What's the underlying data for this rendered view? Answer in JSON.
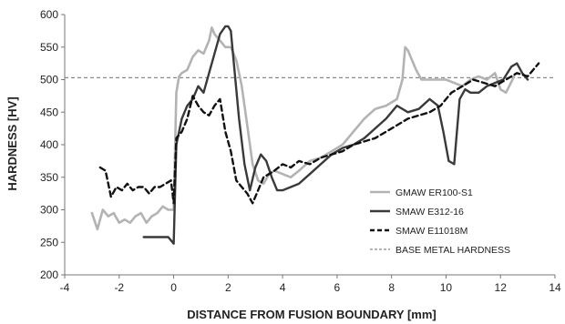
{
  "chart_data": {
    "type": "line",
    "title": "",
    "xlabel": "DISTANCE FROM FUSION BOUNDARY [mm]",
    "ylabel": "HARDNESS [HV]",
    "xlim": [
      -4,
      14
    ],
    "ylim": [
      200,
      600
    ],
    "xticks": [
      -4,
      -2,
      0,
      2,
      4,
      6,
      8,
      10,
      12,
      14
    ],
    "yticks": [
      200,
      250,
      300,
      350,
      400,
      450,
      500,
      550,
      600
    ],
    "grid": false,
    "legend_position": "bottom-right",
    "series": [
      {
        "name": "GMAW ER100-S1",
        "style": "solid",
        "color": "#b3b3b3",
        "x": [
          -3,
          -2.8,
          -2.6,
          -2.4,
          -2.2,
          -2.0,
          -1.8,
          -1.6,
          -1.4,
          -1.2,
          -1.0,
          -0.8,
          -0.6,
          -0.4,
          -0.2,
          0,
          0.1,
          0.2,
          0.3,
          0.5,
          0.7,
          0.9,
          1.1,
          1.3,
          1.4,
          1.5,
          1.7,
          1.9,
          2.1,
          2.3,
          2.5,
          2.7,
          2.9,
          3.1,
          3.3,
          3.5,
          3.7,
          4.0,
          4.3,
          4.6,
          5.0,
          5.4,
          5.8,
          6.2,
          6.6,
          7.0,
          7.4,
          7.8,
          8.2,
          8.4,
          8.5,
          8.6,
          8.7,
          8.9,
          9.1,
          9.3,
          9.5,
          9.7,
          10.0,
          10.3,
          10.6,
          10.9,
          11.2,
          11.5,
          11.8,
          12.0,
          12.2,
          12.5
        ],
        "y": [
          295,
          270,
          300,
          290,
          295,
          280,
          285,
          280,
          290,
          295,
          280,
          290,
          295,
          305,
          300,
          300,
          480,
          505,
          510,
          515,
          535,
          545,
          540,
          560,
          580,
          570,
          560,
          550,
          550,
          530,
          490,
          430,
          370,
          345,
          340,
          355,
          360,
          355,
          350,
          360,
          375,
          380,
          390,
          400,
          420,
          440,
          455,
          460,
          470,
          500,
          550,
          545,
          535,
          515,
          500,
          500,
          500,
          500,
          500,
          495,
          490,
          500,
          505,
          500,
          510,
          485,
          480,
          505
        ]
      },
      {
        "name": "SMAW E312-16",
        "style": "solid",
        "color": "#3a3a3a",
        "x": [
          -1.1,
          -0.8,
          -0.5,
          -0.2,
          0,
          0.1,
          0.3,
          0.5,
          0.7,
          0.9,
          1.1,
          1.3,
          1.5,
          1.7,
          1.9,
          2.0,
          2.1,
          2.2,
          2.4,
          2.6,
          2.8,
          3.0,
          3.2,
          3.4,
          3.6,
          3.8,
          4.0,
          4.3,
          4.6,
          5.0,
          5.4,
          5.8,
          6.2,
          6.6,
          7.0,
          7.4,
          7.8,
          8.2,
          8.6,
          9.0,
          9.4,
          9.7,
          9.9,
          10.1,
          10.3,
          10.5,
          10.7,
          10.9,
          11.2,
          11.5,
          11.8,
          12.1,
          12.4,
          12.6,
          12.8,
          13.0
        ],
        "y": [
          258,
          258,
          258,
          258,
          248,
          400,
          440,
          460,
          470,
          490,
          480,
          510,
          540,
          570,
          582,
          582,
          575,
          530,
          440,
          370,
          330,
          365,
          385,
          375,
          350,
          330,
          330,
          335,
          340,
          355,
          370,
          385,
          395,
          400,
          410,
          425,
          440,
          460,
          450,
          455,
          470,
          460,
          420,
          375,
          370,
          470,
          485,
          480,
          480,
          490,
          495,
          500,
          520,
          525,
          510,
          500
        ]
      },
      {
        "name": "SMAW E11018M",
        "style": "dashed",
        "color": "#111111",
        "x": [
          -2.7,
          -2.5,
          -2.3,
          -2.1,
          -1.9,
          -1.7,
          -1.5,
          -1.3,
          -1.1,
          -0.9,
          -0.7,
          -0.5,
          -0.3,
          -0.1,
          0,
          0.1,
          0.3,
          0.5,
          0.7,
          0.9,
          1.1,
          1.3,
          1.5,
          1.7,
          1.9,
          2.1,
          2.3,
          2.5,
          2.7,
          2.9,
          3.1,
          3.3,
          3.5,
          3.7,
          4.0,
          4.3,
          4.6,
          5.0,
          5.4,
          5.8,
          6.2,
          6.6,
          7.0,
          7.4,
          7.8,
          8.2,
          8.6,
          9.0,
          9.4,
          9.8,
          10.2,
          10.6,
          11.0,
          11.4,
          11.8,
          12.2,
          12.6,
          13.0,
          13.4
        ],
        "y": [
          365,
          360,
          320,
          335,
          330,
          340,
          330,
          335,
          335,
          325,
          335,
          335,
          340,
          345,
          310,
          410,
          420,
          440,
          475,
          460,
          450,
          445,
          460,
          470,
          420,
          390,
          345,
          335,
          325,
          310,
          330,
          350,
          355,
          360,
          370,
          365,
          375,
          370,
          380,
          385,
          390,
          400,
          405,
          410,
          420,
          430,
          440,
          445,
          450,
          460,
          480,
          490,
          500,
          495,
          490,
          500,
          510,
          505,
          525
        ]
      }
    ],
    "reference_line": {
      "name": "BASE METAL HARDNESS",
      "y": 503,
      "style": "dashed",
      "color": "#8a8a8a"
    }
  }
}
